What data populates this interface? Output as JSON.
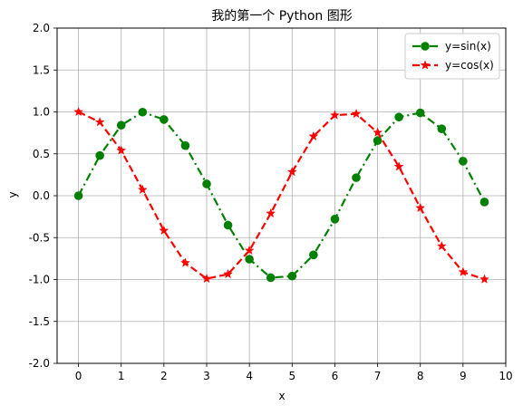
{
  "chart_data": {
    "type": "line",
    "title": "我的第一个 Python 图形",
    "xlabel": "x",
    "ylabel": "y",
    "xlim": [
      -0.5,
      10
    ],
    "ylim": [
      -2.0,
      2.0
    ],
    "grid": true,
    "legend_position": "top-right",
    "x_ticks": [
      "0",
      "1",
      "2",
      "3",
      "4",
      "5",
      "6",
      "7",
      "8",
      "9",
      "10"
    ],
    "y_ticks": [
      "-2.0",
      "-1.5",
      "-1.0",
      "-0.5",
      "0.0",
      "0.5",
      "1.0",
      "1.5",
      "2.0"
    ],
    "x": [
      0,
      0.5,
      1,
      1.5,
      2,
      2.5,
      3,
      3.5,
      4,
      4.5,
      5,
      5.5,
      6,
      6.5,
      7,
      7.5,
      8,
      8.5,
      9,
      9.5
    ],
    "series": [
      {
        "name": "y=sin(x)",
        "color": "#008000",
        "line_style": "dash-dot",
        "marker": "circle",
        "values": [
          0.0,
          0.479,
          0.841,
          0.997,
          0.909,
          0.598,
          0.141,
          -0.351,
          -0.757,
          -0.978,
          -0.959,
          -0.706,
          -0.279,
          0.215,
          0.657,
          0.938,
          0.989,
          0.798,
          0.412,
          -0.075
        ]
      },
      {
        "name": "y=cos(x)",
        "color": "#ff0000",
        "line_style": "dashed",
        "marker": "star",
        "values": [
          1.0,
          0.878,
          0.54,
          0.071,
          -0.416,
          -0.801,
          -0.99,
          -0.936,
          -0.654,
          -0.211,
          0.284,
          0.709,
          0.96,
          0.977,
          0.754,
          0.347,
          -0.146,
          -0.602,
          -0.911,
          -0.997
        ]
      }
    ]
  }
}
